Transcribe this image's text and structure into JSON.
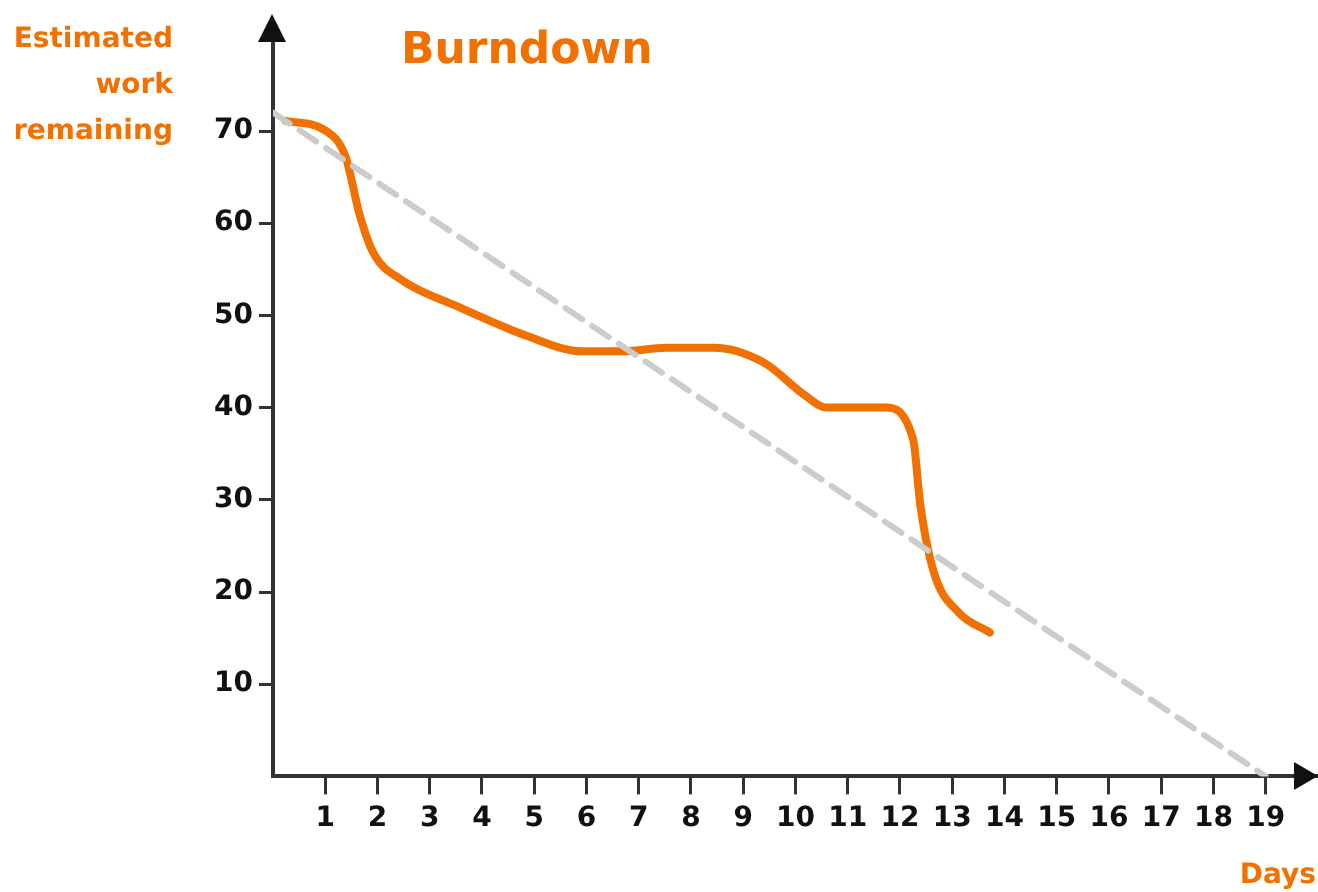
{
  "chart_data": {
    "type": "line",
    "title": "Burndown",
    "xlabel": "Days",
    "ylabel": "Estimated work remaining",
    "xlim": [
      0,
      20
    ],
    "xticks": [
      1,
      2,
      3,
      4,
      5,
      6,
      7,
      8,
      9,
      10,
      11,
      12,
      13,
      14,
      15,
      16,
      17,
      18,
      19
    ],
    "ylim": [
      0,
      80
    ],
    "yticks": [
      10,
      20,
      30,
      40,
      50,
      60,
      70
    ],
    "grid": false,
    "legend": false,
    "series": [
      {
        "color": "#cccccc",
        "line_style": "dashed",
        "marker": "none",
        "x": [
          0,
          19
        ],
        "values": [
          72,
          0
        ]
      },
      {
        "color": "#f07000",
        "line_style": "solid",
        "marker": "none",
        "x": [
          0.25,
          0.99,
          1.39,
          1.65,
          1.92,
          2.45,
          3.52,
          4.85,
          5.92,
          6.72,
          7.52,
          8.45,
          9.39,
          10.19,
          10.59,
          11.72,
          12.25,
          12.39,
          12.65,
          13.12,
          13.72
        ],
        "values": [
          71.1,
          70.1,
          67.2,
          61.1,
          56.8,
          53.9,
          51.0,
          47.8,
          46.1,
          46.1,
          46.5,
          46.5,
          44.9,
          41.3,
          40.0,
          40.0,
          36.6,
          29.4,
          22.1,
          17.8,
          15.6
        ]
      }
    ]
  }
}
